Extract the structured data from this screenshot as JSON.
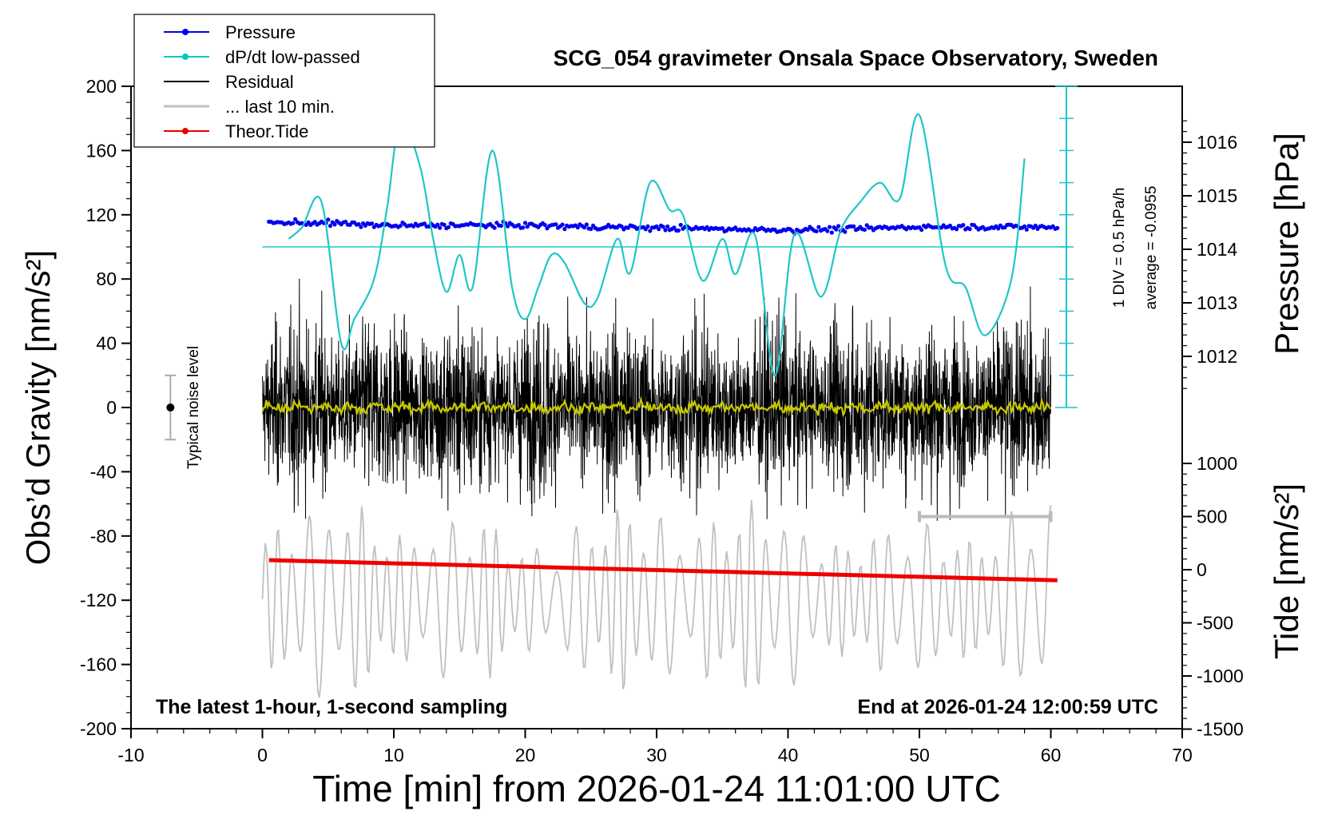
{
  "chart_data": {
    "type": "line",
    "title": "SCG_054 gravimeter Onsala Space Observatory, Sweden",
    "xlabel": "Time [min] from 2026-01-24 11:01:00 UTC",
    "ylabel_left": "Obs’d Gravity [nm/s²]",
    "ylabel_right_top": "Pressure [hPa]",
    "ylabel_right_bottom": "Tide [nm/s²]",
    "xlim": [
      -10,
      70
    ],
    "ylim_left": [
      -200,
      200
    ],
    "pressure_ylim": [
      1011,
      1017
    ],
    "tide_ylim": [
      -1500,
      1000
    ],
    "x_ticks": [
      "-10",
      "0",
      "10",
      "20",
      "30",
      "40",
      "50",
      "60",
      "70"
    ],
    "y_left_ticks": [
      "200",
      "160",
      "120",
      "80",
      "40",
      "0",
      "-40",
      "-80",
      "-120",
      "-160",
      "-200"
    ],
    "pressure_ticks": [
      "1016",
      "1015",
      "1014",
      "1013",
      "1012"
    ],
    "tide_ticks": [
      "1000",
      "500",
      "0",
      "-500",
      "-1000",
      "-1500"
    ],
    "legend": [
      {
        "label": "Pressure",
        "color": "#0000ee",
        "marker": true
      },
      {
        "label": "dP/dt low-passed",
        "color": "#00c8c8",
        "marker": true
      },
      {
        "label": "Residual",
        "color": "#000000",
        "marker": false
      },
      {
        "label": "... last 10 min.",
        "color": "#c0c0c0",
        "marker": false
      },
      {
        "label": "Theor.Tide",
        "color": "#ee0000",
        "marker": true
      }
    ],
    "annotations": {
      "left_bottom": "The latest 1-hour, 1-second sampling",
      "right_bottom": "End at 2026-01-24 12:00:59 UTC",
      "noise_label": "Typical noise level",
      "dpdt_scale": "1 DIV = 0.5 hPa/h",
      "dpdt_average": "average = -0.0955"
    },
    "typical_noise": {
      "x": -7,
      "center": 0,
      "half_range": 20
    },
    "last10_bar": {
      "x_start": 50,
      "x_end": 60,
      "tide": 500
    },
    "series": [
      {
        "name": "Pressure",
        "axis": "pressure",
        "color": "#0000ee",
        "x": [
          0.5,
          5,
          10,
          15,
          20,
          25,
          30,
          35,
          40,
          45,
          50,
          55,
          60.5
        ],
        "values": [
          1014.5,
          1014.49,
          1014.44,
          1014.45,
          1014.45,
          1014.42,
          1014.4,
          1014.38,
          1014.36,
          1014.38,
          1014.42,
          1014.42,
          1014.41
        ]
      },
      {
        "name": "dP/dt low-passed",
        "axis": "left",
        "color": "#1fc6c6",
        "x": [
          2,
          3,
          4.5,
          6,
          7,
          8.5,
          9.5,
          10.5,
          12,
          13,
          14,
          15,
          16,
          17.5,
          19,
          20,
          21,
          22,
          23,
          24.5,
          25.5,
          27,
          28,
          29.5,
          31,
          32,
          33.5,
          35,
          36,
          37.5,
          39,
          40.5,
          42.5,
          44,
          45.5,
          47,
          48.5,
          50,
          52,
          53.5,
          55,
          57,
          58
        ],
        "values": [
          105,
          112,
          128,
          40,
          55,
          80,
          125,
          178,
          150,
          105,
          72,
          95,
          75,
          160,
          75,
          55,
          75,
          95,
          90,
          65,
          68,
          105,
          84,
          140,
          123,
          120,
          79,
          105,
          83,
          107,
          20,
          108,
          69,
          110,
          128,
          140,
          130,
          182,
          88,
          75,
          45,
          80,
          155
        ]
      },
      {
        "name": "Residual",
        "axis": "left",
        "color": "#000000",
        "x": [
          0,
          60
        ],
        "values": [
          0,
          0
        ]
      },
      {
        "name": "... last 10 min.",
        "axis": "tide",
        "color": "#c0c0c0",
        "x": [
          0,
          60
        ],
        "values": [
          0,
          0
        ]
      },
      {
        "name": "Theor.Tide",
        "axis": "tide",
        "color": "#ee0000",
        "x": [
          0.5,
          60.5
        ],
        "values": [
          90,
          -100
        ]
      }
    ]
  }
}
